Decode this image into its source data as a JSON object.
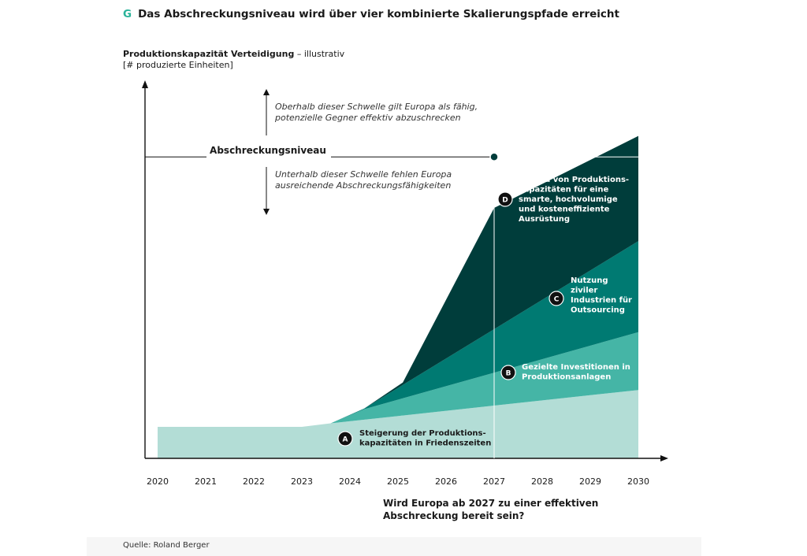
{
  "header": {
    "marker": "G",
    "title": "Das Abschreckungsniveau wird über vier kombinierte Skalierungspfade erreicht"
  },
  "y_axis_label": {
    "bold": "Produktionskapazität Verteidigung",
    "suffix": " – illustrativ",
    "unit": "[# produzierte Einheiten]"
  },
  "source": "Quelle: Roland Berger",
  "annotations": {
    "threshold_label": "Abschreckungsniveau",
    "above_line1": "Oberhalb dieser Schwelle gilt Europa als fähig,",
    "above_line2": "potenzielle Gegner effektiv abzuschrecken",
    "below_line1": "Unterhalb dieser Schwelle fehlen Europa",
    "below_line2": "ausreichende Abschreckungsfähigkeiten",
    "question_line1": "Wird Europa ab 2027 zu einer effektiven",
    "question_line2": "Abschreckung bereit sein?"
  },
  "chart_data": {
    "type": "area",
    "stacked": true,
    "x": [
      2020,
      2021,
      2022,
      2023,
      2024,
      2025,
      2026,
      2027,
      2028,
      2029,
      2030
    ],
    "xlim": [
      2020,
      2030
    ],
    "ylim": [
      0,
      100
    ],
    "threshold": {
      "label": "Abschreckungsniveau",
      "value": 86,
      "year": 2027
    },
    "series": [
      {
        "badge": "A",
        "label_lines": [
          "Steigerung der Produktions-",
          "kapazitäten in Friedenszeiten"
        ],
        "color": "#b3ddd6",
        "points": [
          [
            2020,
            9
          ],
          [
            2023,
            9
          ],
          [
            2023.6,
            10
          ],
          [
            2030,
            19.5
          ]
        ]
      },
      {
        "badge": "B",
        "label_lines": [
          "Gezielte Investitionen in",
          "Produktionsanlagen"
        ],
        "color": "#45b5a6",
        "points": [
          [
            2023.6,
            0
          ],
          [
            2024.3,
            3
          ],
          [
            2030,
            16.5
          ]
        ]
      },
      {
        "badge": "C",
        "label_lines": [
          "Nutzung",
          "ziviler",
          "Industrien für",
          "Outsourcing"
        ],
        "color": "#007a72",
        "points": [
          [
            2023.6,
            0
          ],
          [
            2024.3,
            0.2
          ],
          [
            2030,
            26
          ]
        ]
      },
      {
        "badge": "D",
        "label_lines": [
          "Aufbau von Produktions-",
          "kapazitäten für eine",
          "smarte, hochvolumige",
          "und kosteneffiziente",
          "Ausrüstung"
        ],
        "color": "#003d3b",
        "points": [
          [
            2024.3,
            0
          ],
          [
            2025.1,
            0.7
          ],
          [
            2027,
            34.6
          ],
          [
            2030,
            30
          ]
        ]
      }
    ]
  }
}
